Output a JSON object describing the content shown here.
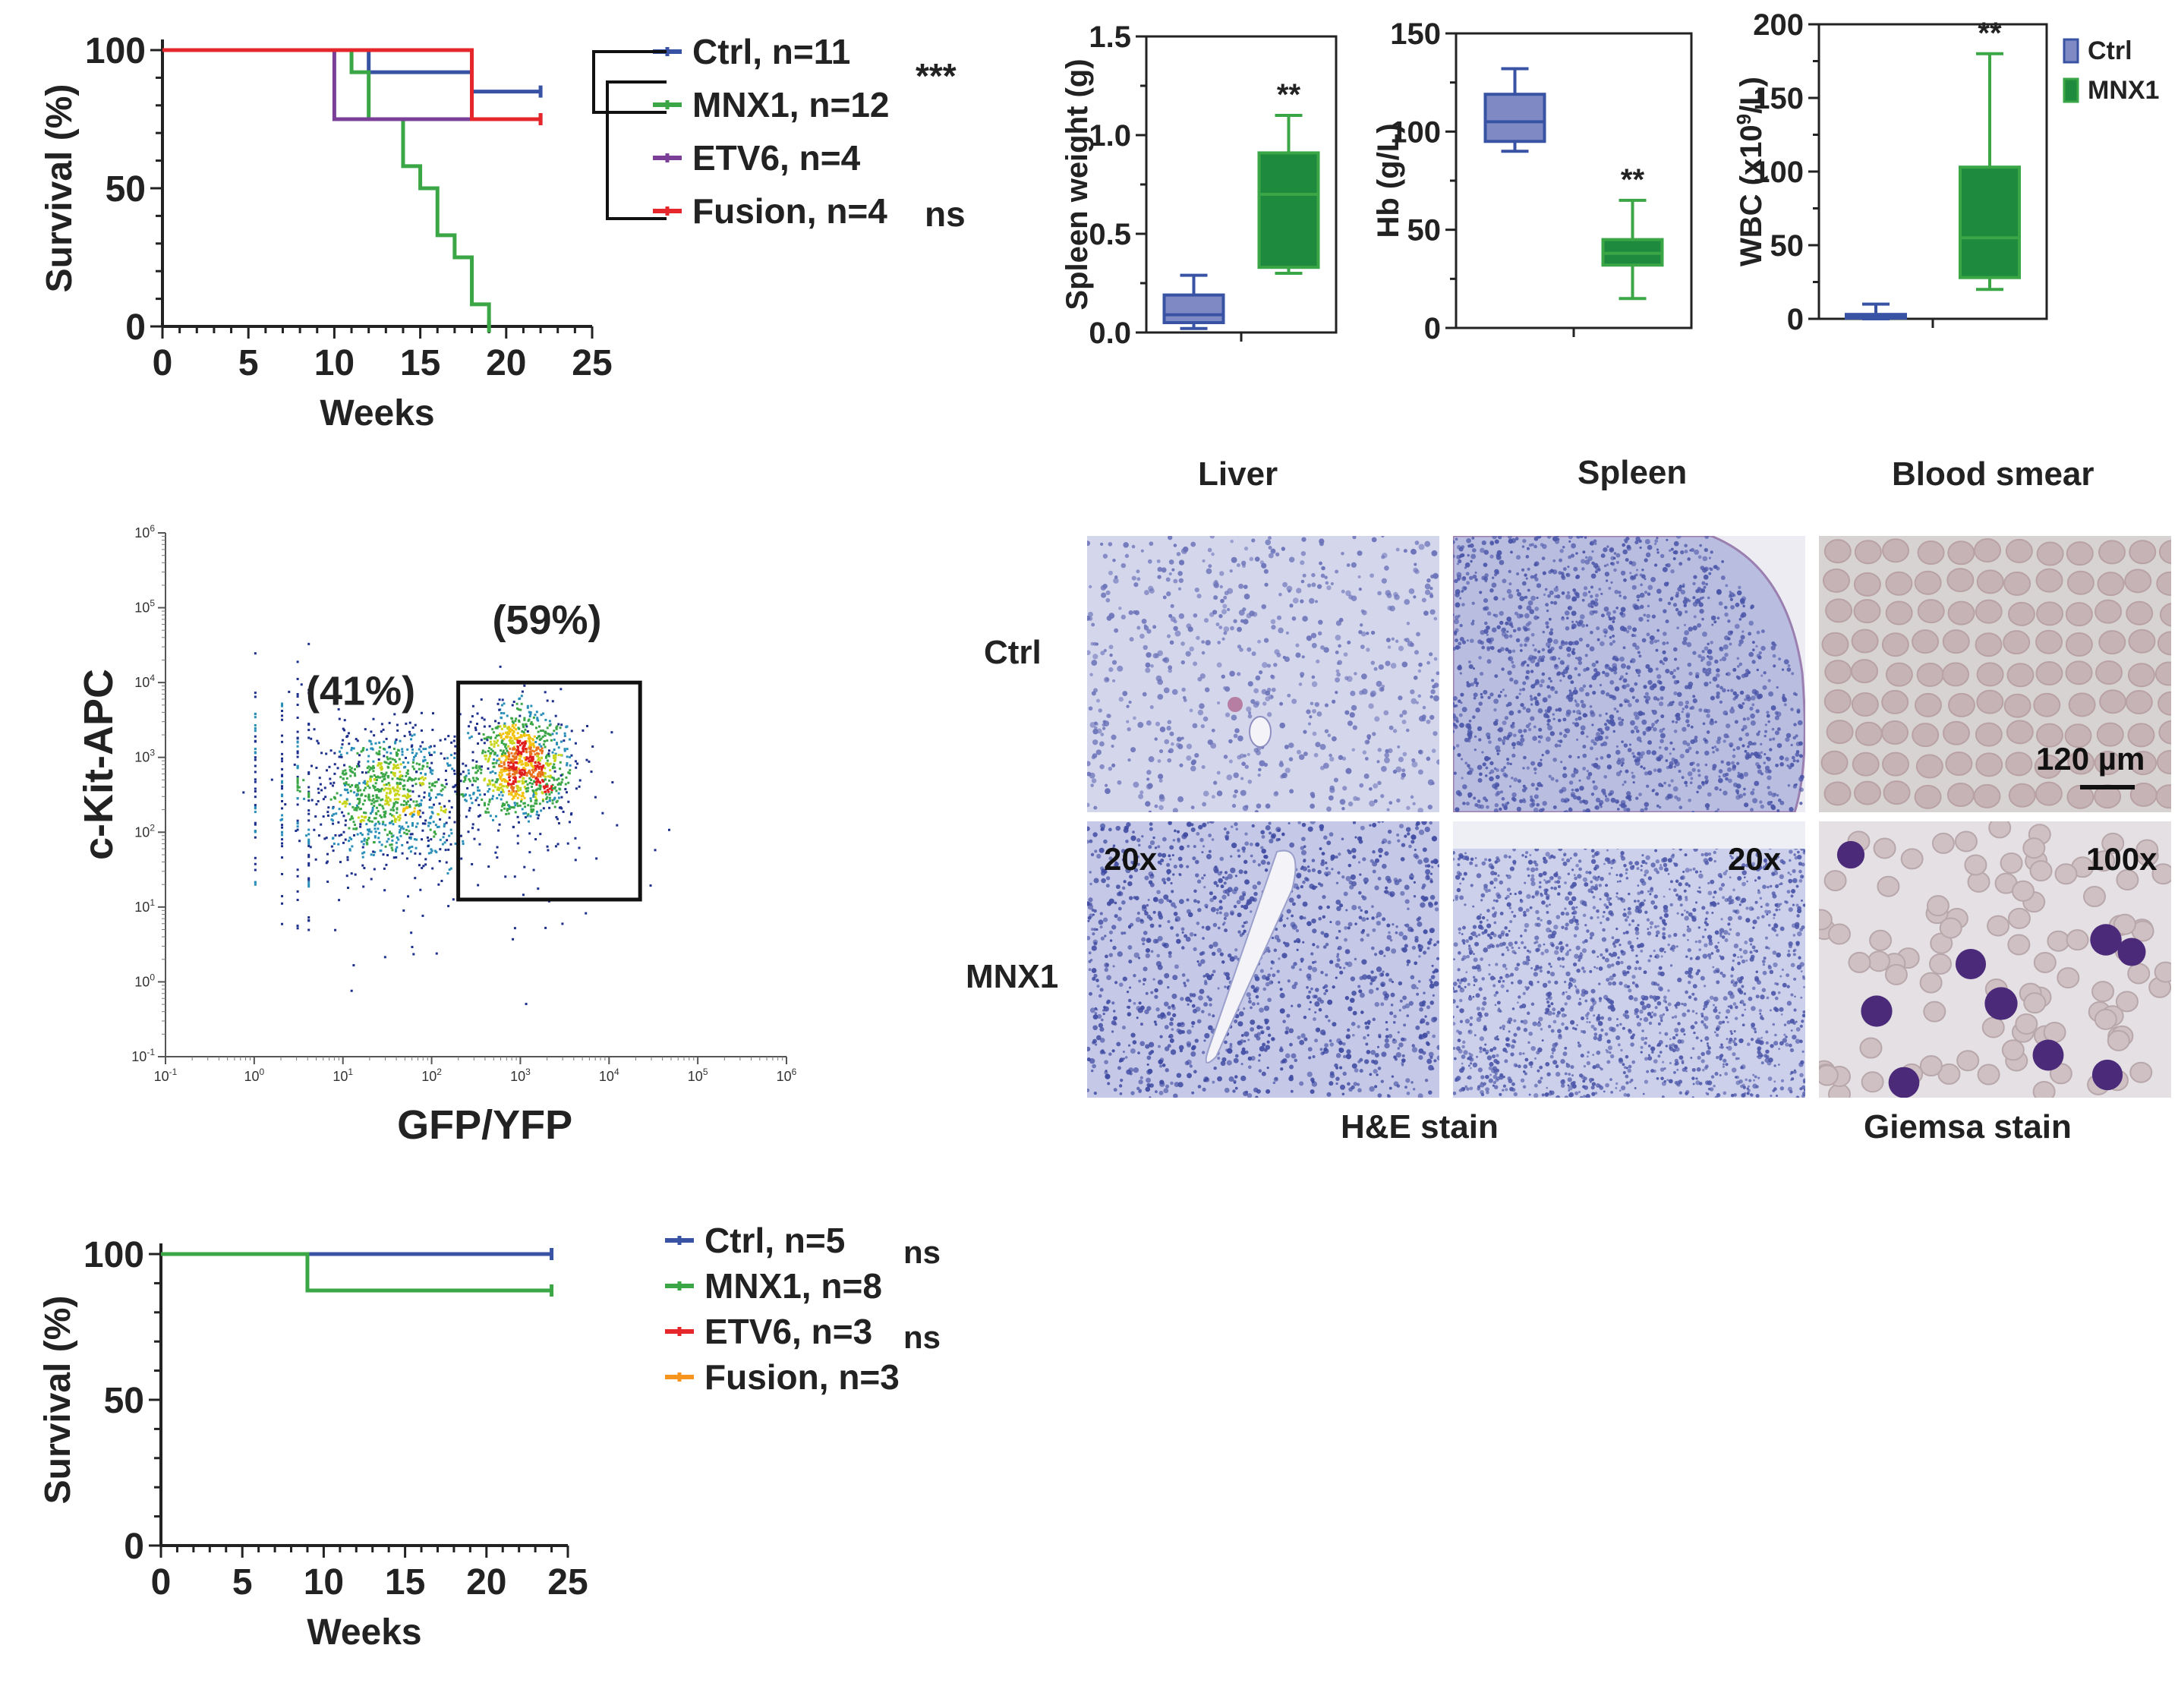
{
  "colors": {
    "ctrl": "#3953a4",
    "mnx1": "#3aa646",
    "etv6": "#7b3f98",
    "fusion": "#e5262a",
    "fusion_b": "#f7941d",
    "box_ctrl_fill": "#7f8ac4",
    "box_mnx1_fill": "#1e8a3e",
    "he_tissue": "#b9bde0",
    "he_nuclei": "#4a55a8",
    "smear_bg": "#d8d3d3",
    "rbc": "#c6b3b6",
    "blast": "#4b2a7a"
  },
  "chart_data": [
    {
      "id": "survival-primary",
      "type": "line",
      "xlabel": "Weeks",
      "ylabel": "Survival (%)",
      "xlim": [
        0,
        25
      ],
      "ylim": [
        0,
        100
      ],
      "xticks": [
        0,
        5,
        10,
        15,
        20,
        25
      ],
      "yticks": [
        0,
        50,
        100
      ],
      "series": [
        {
          "name": "Ctrl, n=11",
          "key": "ctrl",
          "x": [
            0,
            12,
            12,
            18,
            18,
            22
          ],
          "y": [
            100,
            100,
            92,
            92,
            85,
            85
          ]
        },
        {
          "name": "MNX1, n=12",
          "key": "mnx1",
          "x": [
            0,
            11,
            11,
            12,
            12,
            14,
            14,
            15,
            15,
            16,
            16,
            17,
            17,
            18,
            18,
            19,
            19
          ],
          "y": [
            100,
            100,
            92,
            92,
            75,
            75,
            58,
            58,
            50,
            50,
            33,
            33,
            25,
            25,
            8,
            8,
            0
          ]
        },
        {
          "name": "ETV6, n=4",
          "key": "etv6",
          "x": [
            0,
            10,
            10,
            22
          ],
          "y": [
            100,
            100,
            75,
            75
          ]
        },
        {
          "name": "Fusion, n=4",
          "key": "fusion",
          "x": [
            0,
            18,
            18,
            22
          ],
          "y": [
            100,
            100,
            75,
            75
          ]
        }
      ],
      "significance": [
        "***",
        "ns"
      ]
    },
    {
      "id": "spleen-weight",
      "type": "box",
      "ylabel": "Spleen weight (g)",
      "ylim": [
        0,
        1.5
      ],
      "yticks": [
        "0.0",
        "0.5",
        "1.0",
        "1.5"
      ],
      "yticks_values": [
        0,
        0.5,
        1.0,
        1.5
      ],
      "groups": [
        {
          "key": "ctrl",
          "min": 0.02,
          "q1": 0.05,
          "median": 0.09,
          "q3": 0.19,
          "max": 0.29
        },
        {
          "key": "mnx1",
          "min": 0.3,
          "q1": 0.33,
          "median": 0.7,
          "q3": 0.91,
          "max": 1.1
        }
      ],
      "significance": "**"
    },
    {
      "id": "hemoglobin",
      "type": "box",
      "ylabel": "Hb (g/L)",
      "ylim": [
        0,
        150
      ],
      "yticks": [
        "0",
        "50",
        "100",
        "150"
      ],
      "yticks_values": [
        0,
        50,
        100,
        150
      ],
      "groups": [
        {
          "key": "ctrl",
          "min": 90,
          "q1": 95,
          "median": 105,
          "q3": 119,
          "max": 132
        },
        {
          "key": "mnx1",
          "min": 15,
          "q1": 32,
          "median": 38,
          "q3": 45,
          "max": 65
        }
      ],
      "significance": "**"
    },
    {
      "id": "wbc",
      "type": "box",
      "ylabel_main": "WBC (x10",
      "ylabel_sup": "9",
      "ylabel_tail": "/L)",
      "ylim": [
        0,
        200
      ],
      "yticks": [
        "0",
        "50",
        "100",
        "150",
        "200"
      ],
      "yticks_values": [
        0,
        50,
        100,
        150,
        200
      ],
      "groups": [
        {
          "key": "ctrl",
          "min": 0,
          "q1": 0.5,
          "median": 1.5,
          "q3": 3,
          "max": 10
        },
        {
          "key": "mnx1",
          "min": 20,
          "q1": 28,
          "median": 55,
          "q3": 103,
          "max": 180
        }
      ],
      "significance": "**",
      "legend": [
        {
          "label": "Ctrl",
          "key": "ctrl"
        },
        {
          "label": "MNX1",
          "key": "mnx1"
        }
      ]
    },
    {
      "id": "flow-cytometry",
      "type": "scatter",
      "xlabel": "GFP/YFP",
      "ylabel": "c-Kit-APC",
      "scale": "log10",
      "xlim_exp": [
        -1,
        6
      ],
      "ylim_exp": [
        -1,
        6
      ],
      "xticks_exp": [
        "-1",
        "0",
        "1",
        "2",
        "3",
        "4",
        "5",
        "6"
      ],
      "yticks_exp": [
        "-1",
        "0",
        "1",
        "2",
        "3",
        "4",
        "5",
        "6"
      ],
      "tick_base": "10",
      "gate_exp": {
        "x": [
          2.3,
          4.35
        ],
        "y": [
          1.1,
          4.0
        ]
      },
      "populations": [
        {
          "label": "(41%)",
          "center_exp": [
            1.4,
            2.6
          ]
        },
        {
          "label": "(59%)",
          "center_exp": [
            3.1,
            2.95
          ]
        }
      ]
    },
    {
      "id": "survival-secondary",
      "type": "line",
      "xlabel": "Weeks",
      "ylabel": "Survival (%)",
      "xlim": [
        0,
        25
      ],
      "ylim": [
        0,
        100
      ],
      "xticks": [
        0,
        5,
        10,
        15,
        20,
        25
      ],
      "yticks": [
        0,
        50,
        100
      ],
      "series": [
        {
          "name": "Ctrl, n=5",
          "key": "ctrl",
          "x": [
            0,
            24
          ],
          "y": [
            100,
            100
          ]
        },
        {
          "name": "MNX1, n=8",
          "key": "mnx1",
          "x": [
            0,
            9,
            9,
            24
          ],
          "y": [
            100,
            100,
            87.5,
            87.5
          ]
        },
        {
          "name": "ETV6, n=3",
          "key": "fusion",
          "x": [],
          "y": []
        },
        {
          "name": "Fusion, n=3",
          "key": "fusion_b",
          "x": [],
          "y": []
        }
      ],
      "significance": [
        "ns",
        "ns"
      ]
    }
  ],
  "histology": {
    "columns": [
      "Liver",
      "Spleen",
      "Blood smear"
    ],
    "rows": [
      "Ctrl",
      "MNX1"
    ],
    "magnification_he": "20x",
    "magnification_giemsa": "100x",
    "scalebar": "120 µm",
    "stain_he": "H&E stain",
    "stain_giemsa": "Giemsa stain"
  }
}
